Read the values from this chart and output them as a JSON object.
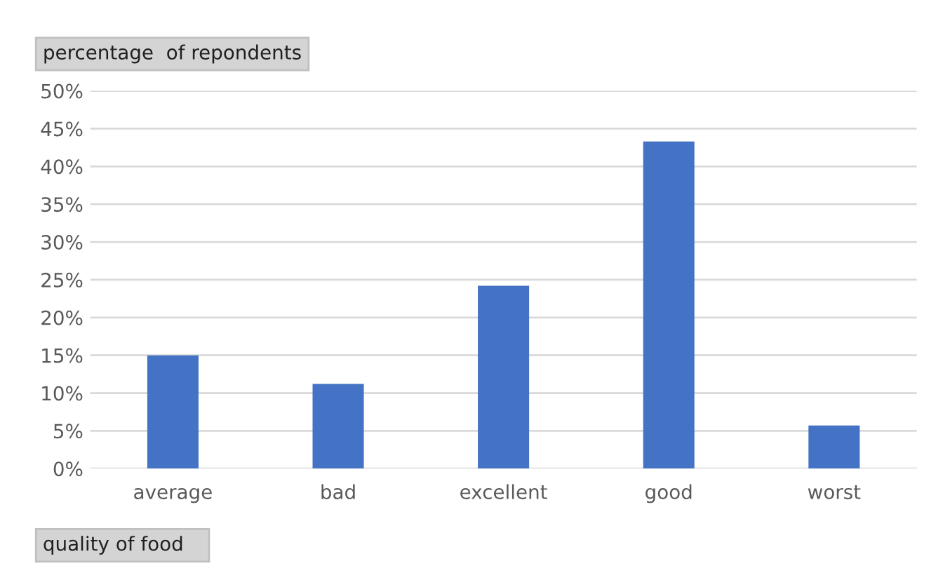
{
  "chart_data": {
    "type": "bar",
    "ylabel": "percentage  of repondents",
    "xlabel": "quality of food",
    "categories": [
      "average",
      "bad",
      "excellent",
      "good",
      "worst"
    ],
    "values": [
      15.0,
      11.2,
      24.2,
      43.3,
      5.7
    ],
    "color": "#4472c4",
    "ylim": [
      0,
      50
    ],
    "yticks": [
      {
        "value": 0,
        "label": "0%"
      },
      {
        "value": 5,
        "label": "5%"
      },
      {
        "value": 10,
        "label": "10%"
      },
      {
        "value": 15,
        "label": "15%"
      },
      {
        "value": 20,
        "label": "20%"
      },
      {
        "value": 25,
        "label": "25%"
      },
      {
        "value": 30,
        "label": "30%"
      },
      {
        "value": 35,
        "label": "35%"
      },
      {
        "value": 40,
        "label": "40%"
      },
      {
        "value": 45,
        "label": "45%"
      },
      {
        "value": 50,
        "label": "50%"
      }
    ],
    "grid": "y"
  }
}
